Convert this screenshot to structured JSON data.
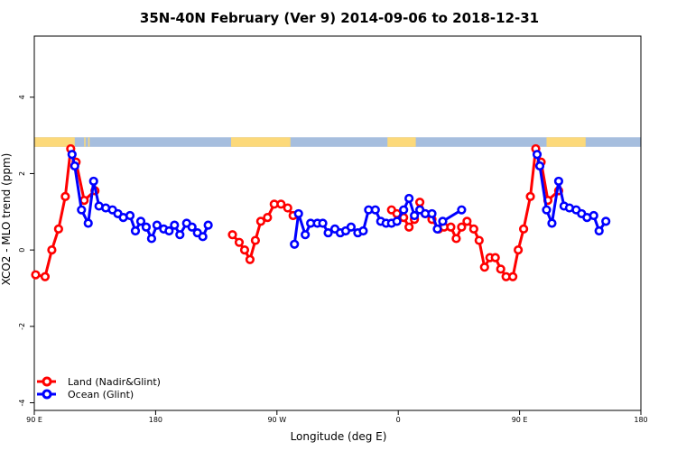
{
  "chart_data": {
    "type": "line",
    "title": "35N-40N February (Ver 9)   2014-09-06 to 2018-12-31",
    "xlabel": "Longitude (deg E)",
    "ylabel": "XCO2 - MLO trend (ppm)",
    "xlim": [
      90,
      540
    ],
    "ylim": [
      -4.2,
      5.6
    ],
    "x_ticks": [
      {
        "value": 90,
        "label": "90 E"
      },
      {
        "value": 180,
        "label": "180"
      },
      {
        "value": 270,
        "label": "90 W"
      },
      {
        "value": 360,
        "label": "0"
      },
      {
        "value": 450,
        "label": "90 E"
      },
      {
        "value": 540,
        "label": "180"
      }
    ],
    "y_ticks": [
      -4,
      -2,
      0,
      2,
      4
    ],
    "legend_position": "bottom-left",
    "grid": false,
    "land_ocean_band": {
      "y_range": [
        2.7,
        2.95
      ],
      "land_color": "#fcd97a",
      "ocean_color": "#a6bede",
      "land_spans": [
        [
          90,
          120
        ],
        [
          127,
          128
        ],
        [
          130,
          131
        ],
        [
          236,
          280
        ],
        [
          352,
          373
        ],
        [
          470,
          499
        ]
      ]
    },
    "series": [
      {
        "name": "Land (Nadir&Glint)",
        "color": "#ff0000",
        "points": [
          [
            91,
            -0.65
          ],
          [
            98,
            -0.7
          ],
          [
            103,
            0.0
          ],
          [
            108,
            0.55
          ],
          [
            113,
            1.4
          ],
          [
            117,
            2.65
          ],
          [
            121,
            2.3
          ],
          [
            127,
            1.3
          ],
          [
            135,
            1.55
          ],
          [
            237,
            0.4
          ],
          [
            242,
            0.2
          ],
          [
            246,
            0.0
          ],
          [
            250,
            -0.25
          ],
          [
            254,
            0.25
          ],
          [
            258,
            0.75
          ],
          [
            263,
            0.85
          ],
          [
            268,
            1.2
          ],
          [
            273,
            1.2
          ],
          [
            278,
            1.1
          ],
          [
            282,
            0.9
          ],
          [
            355,
            1.05
          ],
          [
            359,
            0.95
          ],
          [
            364,
            0.85
          ],
          [
            368,
            0.6
          ],
          [
            372,
            0.8
          ],
          [
            376,
            1.25
          ],
          [
            380,
            0.95
          ],
          [
            385,
            0.8
          ],
          [
            390,
            0.55
          ],
          [
            394,
            0.6
          ],
          [
            399,
            0.6
          ],
          [
            403,
            0.3
          ],
          [
            407,
            0.6
          ],
          [
            411,
            0.75
          ],
          [
            416,
            0.55
          ],
          [
            420,
            0.25
          ],
          [
            424,
            -0.45
          ],
          [
            428,
            -0.2
          ],
          [
            432,
            -0.2
          ],
          [
            436,
            -0.5
          ],
          [
            440,
            -0.7
          ],
          [
            445,
            -0.7
          ],
          [
            449,
            0.0
          ],
          [
            453,
            0.55
          ],
          [
            458,
            1.4
          ],
          [
            462,
            2.65
          ],
          [
            466,
            2.3
          ],
          [
            471,
            1.3
          ],
          [
            479,
            1.55
          ]
        ]
      },
      {
        "name": "Ocean (Glint)",
        "color": "#0000ff",
        "points": [
          [
            118,
            2.5
          ],
          [
            120,
            2.2
          ],
          [
            125,
            1.05
          ],
          [
            130,
            0.7
          ],
          [
            134,
            1.8
          ],
          [
            138,
            1.15
          ],
          [
            143,
            1.1
          ],
          [
            148,
            1.05
          ],
          [
            152,
            0.95
          ],
          [
            156,
            0.85
          ],
          [
            161,
            0.9
          ],
          [
            165,
            0.5
          ],
          [
            169,
            0.75
          ],
          [
            173,
            0.6
          ],
          [
            177,
            0.3
          ],
          [
            181,
            0.65
          ],
          [
            186,
            0.55
          ],
          [
            190,
            0.5
          ],
          [
            194,
            0.65
          ],
          [
            198,
            0.4
          ],
          [
            203,
            0.7
          ],
          [
            207,
            0.6
          ],
          [
            211,
            0.45
          ],
          [
            215,
            0.35
          ],
          [
            219,
            0.65
          ],
          [
            283,
            0.15
          ],
          [
            286,
            0.95
          ],
          [
            291,
            0.4
          ],
          [
            295,
            0.7
          ],
          [
            300,
            0.7
          ],
          [
            304,
            0.7
          ],
          [
            308,
            0.45
          ],
          [
            313,
            0.55
          ],
          [
            317,
            0.45
          ],
          [
            321,
            0.5
          ],
          [
            325,
            0.6
          ],
          [
            330,
            0.45
          ],
          [
            334,
            0.5
          ],
          [
            338,
            1.05
          ],
          [
            343,
            1.05
          ],
          [
            347,
            0.75
          ],
          [
            351,
            0.7
          ],
          [
            355,
            0.7
          ],
          [
            359,
            0.75
          ],
          [
            364,
            1.05
          ],
          [
            368,
            1.35
          ],
          [
            372,
            0.9
          ],
          [
            376,
            1.05
          ],
          [
            380,
            0.95
          ],
          [
            385,
            0.95
          ],
          [
            389,
            0.55
          ],
          [
            393,
            0.75
          ],
          [
            407,
            1.05
          ],
          [
            463,
            2.5
          ],
          [
            465,
            2.2
          ],
          [
            470,
            1.05
          ],
          [
            474,
            0.7
          ],
          [
            479,
            1.8
          ],
          [
            483,
            1.15
          ],
          [
            487,
            1.1
          ],
          [
            492,
            1.05
          ],
          [
            496,
            0.95
          ],
          [
            500,
            0.85
          ],
          [
            505,
            0.9
          ],
          [
            509,
            0.5
          ],
          [
            514,
            0.75
          ]
        ]
      }
    ]
  }
}
